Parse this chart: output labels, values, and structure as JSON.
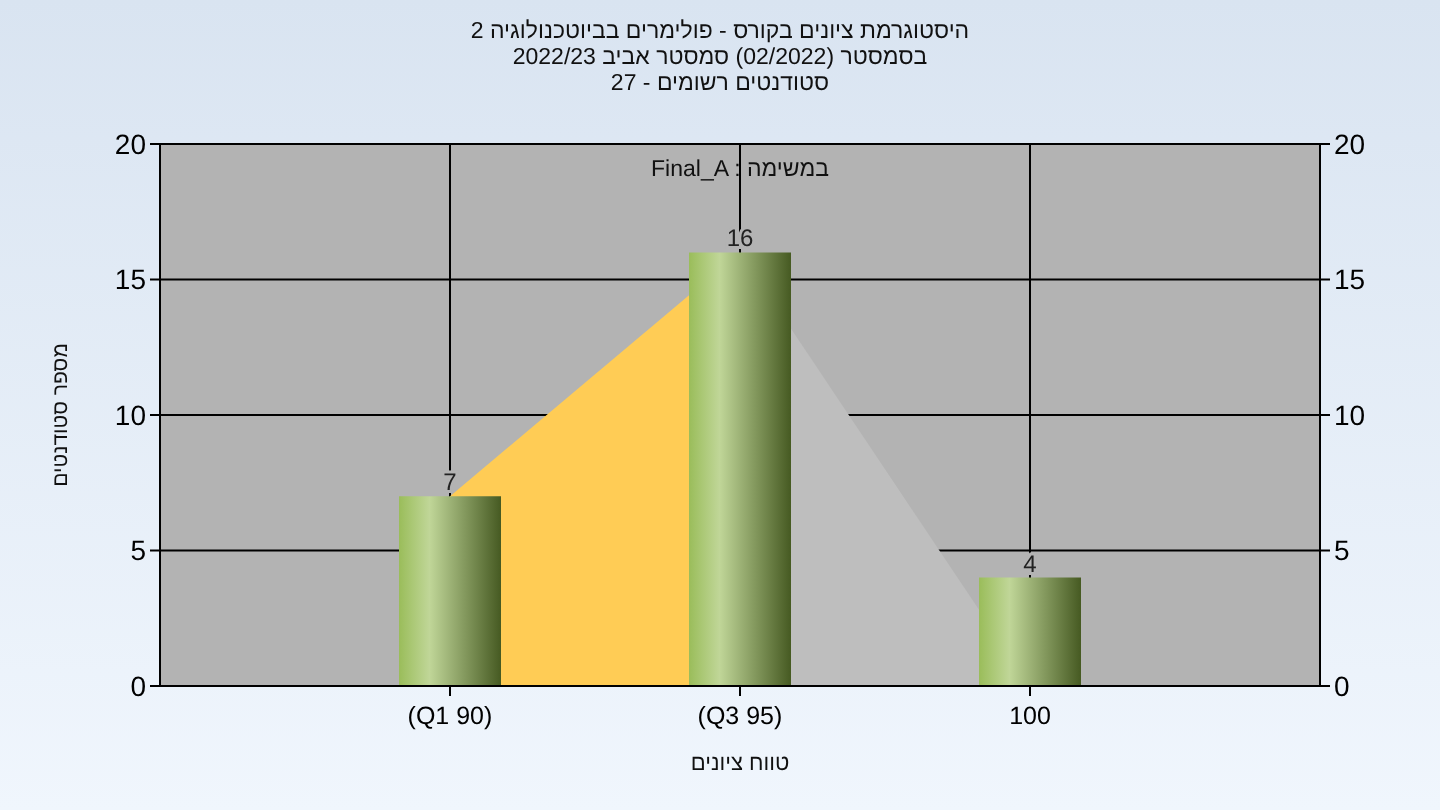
{
  "chart_data": {
    "type": "bar",
    "title": "היסטוגרמת ציונים בקורס - פולימרים בביוטכנולוגיה 2",
    "subtitle": "בסמסטר (02/2022) סמסטר אביב 2022/23\nסטודנטים רשומים - 27",
    "xlabel": "טווח ציונים",
    "ylabel": "מספר סטודנטים",
    "annotations": [
      "Final_A : במשימה"
    ],
    "categories": [
      "(Q1 90)",
      "(Q3 95)",
      "100"
    ],
    "series": [
      {
        "type": "area",
        "color": "#ffcc55",
        "values": [
          7,
          16,
          null
        ]
      },
      {
        "type": "area",
        "color": "#bebebe",
        "values": [
          null,
          16,
          0
        ]
      },
      {
        "color": "#8cb443",
        "values": [
          7,
          16,
          4
        ],
        "value_labels": [
          "7",
          "16",
          "4"
        ]
      }
    ],
    "ylim": [
      0,
      20
    ],
    "yticks": [
      0,
      5,
      10,
      15,
      20
    ],
    "y2lim": [
      0,
      20
    ],
    "y2ticks": [
      0,
      5,
      10,
      15,
      20
    ],
    "grid": true
  }
}
